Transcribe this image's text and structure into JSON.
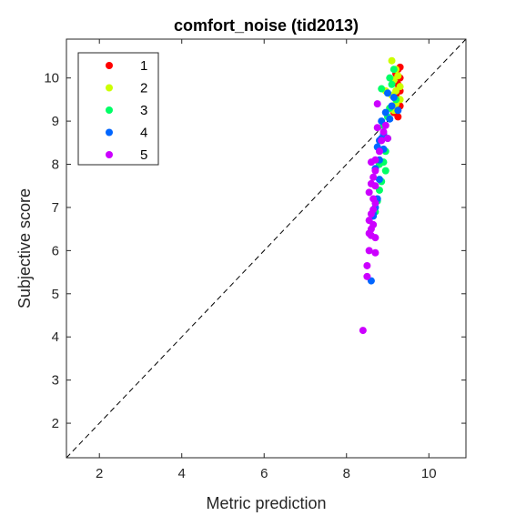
{
  "chart_data": {
    "type": "scatter",
    "title": "comfort_noise (tid2013)",
    "xlabel": "Metric prediction",
    "ylabel": "Subjective score",
    "xlim": [
      1.2,
      10.9
    ],
    "ylim": [
      1.2,
      10.9
    ],
    "xticks": [
      2,
      4,
      6,
      8,
      10
    ],
    "yticks": [
      2,
      3,
      4,
      5,
      6,
      7,
      8,
      9,
      10
    ],
    "grid": false,
    "legend_position": "top-left",
    "reference_line": "y = x (dashed)",
    "series": [
      {
        "name": "1",
        "color": "#ff0000",
        "points": [
          [
            9.3,
            10.25
          ],
          [
            9.25,
            10.2
          ],
          [
            9.2,
            10.1
          ],
          [
            9.3,
            10.0
          ],
          [
            9.25,
            9.85
          ],
          [
            9.3,
            9.7
          ],
          [
            9.2,
            9.6
          ],
          [
            9.25,
            9.45
          ],
          [
            9.3,
            9.35
          ],
          [
            9.15,
            9.2
          ],
          [
            9.25,
            9.1
          ]
        ]
      },
      {
        "name": "2",
        "color": "#ccff00",
        "points": [
          [
            9.1,
            10.4
          ],
          [
            9.2,
            10.2
          ],
          [
            9.25,
            10.05
          ],
          [
            9.15,
            9.95
          ],
          [
            9.3,
            9.8
          ],
          [
            9.2,
            9.7
          ],
          [
            9.1,
            9.6
          ],
          [
            9.3,
            9.5
          ],
          [
            9.2,
            9.4
          ],
          [
            9.05,
            9.3
          ],
          [
            8.95,
            9.7
          ],
          [
            9.15,
            9.25
          ]
        ]
      },
      {
        "name": "3",
        "color": "#00ff66",
        "points": [
          [
            9.15,
            10.2
          ],
          [
            9.05,
            10.0
          ],
          [
            9.1,
            9.85
          ],
          [
            9.2,
            9.5
          ],
          [
            9.05,
            9.3
          ],
          [
            8.85,
            9.75
          ],
          [
            9.0,
            9.1
          ],
          [
            8.9,
            8.9
          ],
          [
            9.0,
            8.6
          ],
          [
            8.95,
            8.3
          ],
          [
            8.9,
            8.05
          ],
          [
            8.95,
            7.85
          ],
          [
            8.85,
            7.6
          ],
          [
            8.8,
            7.4
          ],
          [
            8.75,
            7.15
          ],
          [
            8.7,
            6.9
          ],
          [
            8.8,
            8.0
          ]
        ]
      },
      {
        "name": "4",
        "color": "#0066ff",
        "points": [
          [
            9.25,
            9.25
          ],
          [
            9.15,
            9.55
          ],
          [
            9.1,
            9.35
          ],
          [
            9.0,
            9.65
          ],
          [
            9.05,
            9.05
          ],
          [
            8.95,
            9.2
          ],
          [
            8.85,
            9.0
          ],
          [
            8.9,
            8.7
          ],
          [
            8.8,
            8.55
          ],
          [
            8.9,
            8.35
          ],
          [
            8.75,
            8.4
          ],
          [
            8.8,
            8.1
          ],
          [
            8.7,
            7.9
          ],
          [
            8.8,
            7.65
          ],
          [
            8.75,
            7.2
          ],
          [
            8.7,
            7.0
          ],
          [
            8.65,
            6.85
          ],
          [
            8.6,
            5.3
          ],
          [
            8.65,
            6.8
          ],
          [
            8.85,
            8.6
          ]
        ]
      },
      {
        "name": "5",
        "color": "#cc00ff",
        "points": [
          [
            8.95,
            8.9
          ],
          [
            8.9,
            8.75
          ],
          [
            9.0,
            8.6
          ],
          [
            8.85,
            8.55
          ],
          [
            8.75,
            9.4
          ],
          [
            8.75,
            8.85
          ],
          [
            8.8,
            8.3
          ],
          [
            8.7,
            8.1
          ],
          [
            8.6,
            8.05
          ],
          [
            8.7,
            7.85
          ],
          [
            8.65,
            7.7
          ],
          [
            8.7,
            7.5
          ],
          [
            8.6,
            7.55
          ],
          [
            8.55,
            7.35
          ],
          [
            8.65,
            7.2
          ],
          [
            8.7,
            7.1
          ],
          [
            8.65,
            6.95
          ],
          [
            8.6,
            6.85
          ],
          [
            8.55,
            6.7
          ],
          [
            8.65,
            6.6
          ],
          [
            8.6,
            6.5
          ],
          [
            8.6,
            6.35
          ],
          [
            8.55,
            6.4
          ],
          [
            8.7,
            6.3
          ],
          [
            8.55,
            6.0
          ],
          [
            8.7,
            5.95
          ],
          [
            8.5,
            5.65
          ],
          [
            8.5,
            5.4
          ],
          [
            8.4,
            4.15
          ]
        ]
      }
    ]
  }
}
